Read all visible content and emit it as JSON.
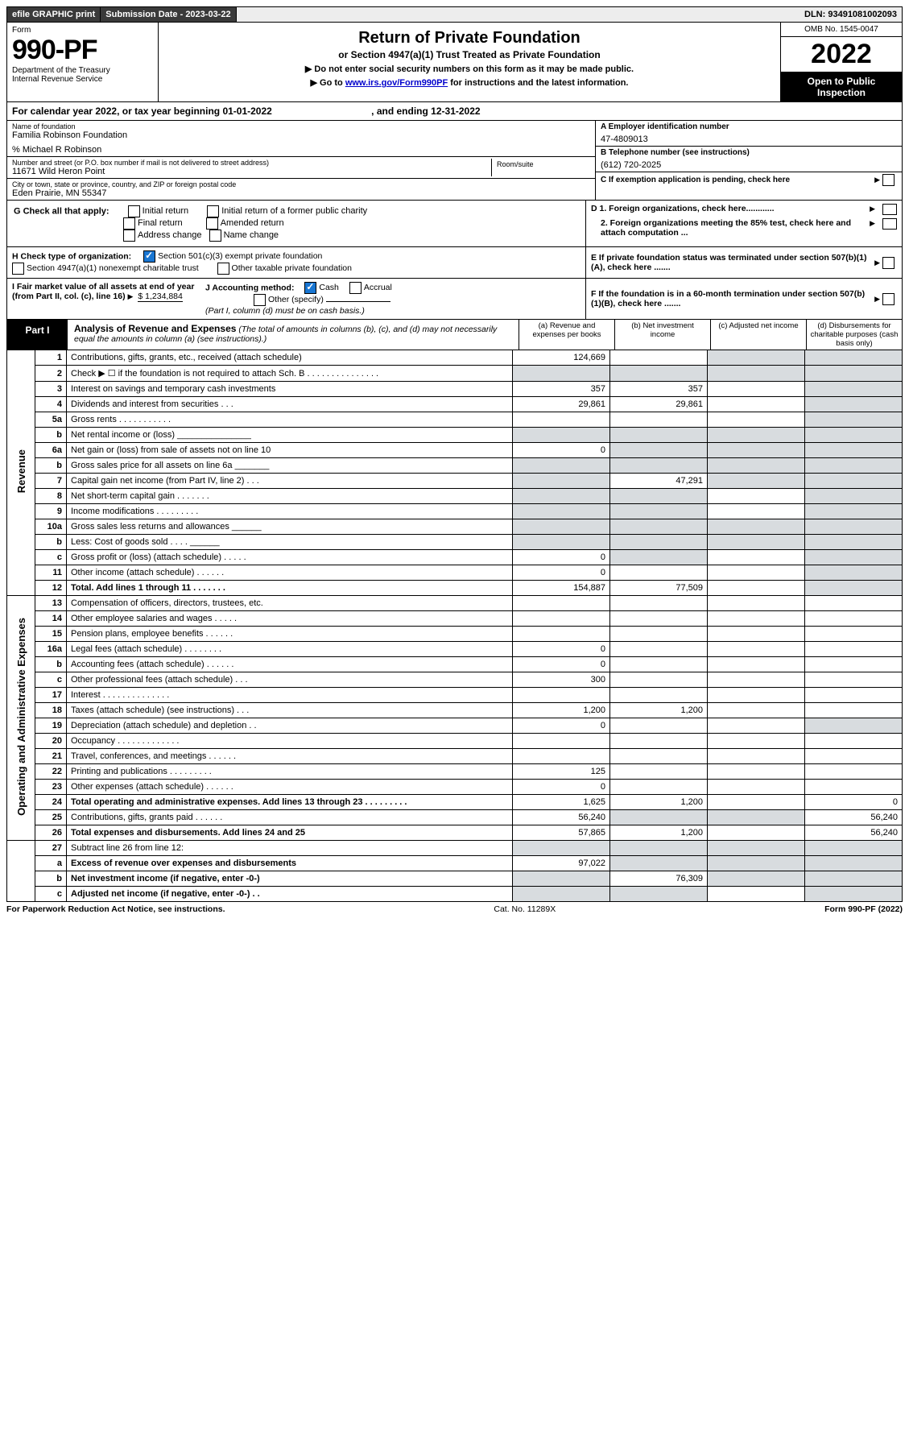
{
  "top_bar": {
    "efile": "efile GRAPHIC print",
    "submission_label": "Submission Date - 2023-03-22",
    "dln": "DLN: 93491081002093"
  },
  "header": {
    "form_word": "Form",
    "form_number": "990-PF",
    "dept": "Department of the Treasury",
    "irs": "Internal Revenue Service",
    "title": "Return of Private Foundation",
    "subtitle": "or Section 4947(a)(1) Trust Treated as Private Foundation",
    "instr1": "▶ Do not enter social security numbers on this form as it may be made public.",
    "instr2_pre": "▶ Go to ",
    "instr2_link": "www.irs.gov/Form990PF",
    "instr2_post": " for instructions and the latest information.",
    "omb": "OMB No. 1545-0047",
    "year": "2022",
    "open": "Open to Public Inspection"
  },
  "cal_year": {
    "text_a": "For calendar year 2022, or tax year beginning 01-01-2022",
    "text_b": ", and ending 12-31-2022"
  },
  "info": {
    "name_label": "Name of foundation",
    "name": "Familia Robinson Foundation",
    "care_of": "% Michael R Robinson",
    "addr_label": "Number and street (or P.O. box number if mail is not delivered to street address)",
    "addr": "11671 Wild Heron Point",
    "room_label": "Room/suite",
    "city_label": "City or town, state or province, country, and ZIP or foreign postal code",
    "city": "Eden Prairie, MN  55347",
    "a_label": "A Employer identification number",
    "a_val": "47-4809013",
    "b_label": "B Telephone number (see instructions)",
    "b_val": "(612) 720-2025",
    "c_label": "C If exemption application is pending, check here"
  },
  "g": {
    "label": "G Check all that apply:",
    "opts": [
      "Initial return",
      "Initial return of a former public charity",
      "Final return",
      "Amended return",
      "Address change",
      "Name change"
    ]
  },
  "d": {
    "d1": "D 1. Foreign organizations, check here............",
    "d2": "2. Foreign organizations meeting the 85% test, check here and attach computation ..."
  },
  "h": {
    "label": "H Check type of organization:",
    "opt1": "Section 501(c)(3) exempt private foundation",
    "opt2": "Section 4947(a)(1) nonexempt charitable trust",
    "opt3": "Other taxable private foundation"
  },
  "e": "E  If private foundation status was terminated under section 507(b)(1)(A), check here .......",
  "i": {
    "label": "I Fair market value of all assets at end of year (from Part II, col. (c), line 16)",
    "val": "$  1,234,884"
  },
  "j": {
    "label": "J Accounting method:",
    "cash": "Cash",
    "accrual": "Accrual",
    "other": "Other (specify)",
    "note": "(Part I, column (d) must be on cash basis.)"
  },
  "f": "F  If the foundation is in a 60-month termination under section 507(b)(1)(B), check here .......",
  "part1": {
    "label": "Part I",
    "title": "Analysis of Revenue and Expenses",
    "note": "(The total of amounts in columns (b), (c), and (d) may not necessarily equal the amounts in column (a) (see instructions).)",
    "col_a": "(a) Revenue and expenses per books",
    "col_b": "(b) Net investment income",
    "col_c": "(c) Adjusted net income",
    "col_d": "(d) Disbursements for charitable purposes (cash basis only)"
  },
  "revenue_label": "Revenue",
  "expenses_label": "Operating and Administrative Expenses",
  "rows": [
    {
      "n": "1",
      "d": "Contributions, gifts, grants, etc., received (attach schedule)",
      "a": "124,669",
      "b": "",
      "c": "g",
      "dg": "g"
    },
    {
      "n": "2",
      "d": "Check ▶ ☐ if the foundation is not required to attach Sch. B   .   .   .   .   .   .   .   .   .   .   .   .   .   .   .",
      "a": "g",
      "b": "g",
      "c": "g",
      "dg": "g"
    },
    {
      "n": "3",
      "d": "Interest on savings and temporary cash investments",
      "a": "357",
      "b": "357",
      "c": "",
      "dg": "g"
    },
    {
      "n": "4",
      "d": "Dividends and interest from securities    .    .    .",
      "a": "29,861",
      "b": "29,861",
      "c": "",
      "dg": "g"
    },
    {
      "n": "5a",
      "d": "Gross rents    .    .    .    .    .    .    .    .    .    .    .",
      "a": "",
      "b": "",
      "c": "",
      "dg": "g"
    },
    {
      "n": "b",
      "d": "Net rental income or (loss)  _______________",
      "a": "g",
      "b": "g",
      "c": "g",
      "dg": "g"
    },
    {
      "n": "6a",
      "d": "Net gain or (loss) from sale of assets not on line 10",
      "a": "0",
      "b": "g",
      "c": "g",
      "dg": "g"
    },
    {
      "n": "b",
      "d": "Gross sales price for all assets on line 6a _______",
      "a": "g",
      "b": "g",
      "c": "g",
      "dg": "g"
    },
    {
      "n": "7",
      "d": "Capital gain net income (from Part IV, line 2)   .   .   .",
      "a": "g",
      "b": "47,291",
      "c": "g",
      "dg": "g"
    },
    {
      "n": "8",
      "d": "Net short-term capital gain   .   .   .   .   .   .   .",
      "a": "g",
      "b": "g",
      "c": "",
      "dg": "g"
    },
    {
      "n": "9",
      "d": "Income modifications  .   .   .   .   .   .   .   .   .",
      "a": "g",
      "b": "g",
      "c": "",
      "dg": "g"
    },
    {
      "n": "10a",
      "d": "Gross sales less returns and allowances  ______",
      "a": "g",
      "b": "g",
      "c": "g",
      "dg": "g"
    },
    {
      "n": "b",
      "d": "Less: Cost of goods sold    .   .   .   .  ______",
      "a": "g",
      "b": "g",
      "c": "g",
      "dg": "g"
    },
    {
      "n": "c",
      "d": "Gross profit or (loss) (attach schedule)   .   .   .   .   .",
      "a": "0",
      "b": "g",
      "c": "",
      "dg": "g"
    },
    {
      "n": "11",
      "d": "Other income (attach schedule)    .   .   .   .   .   .",
      "a": "0",
      "b": "",
      "c": "",
      "dg": "g"
    },
    {
      "n": "12",
      "d": "Total. Add lines 1 through 11   .   .   .   .   .   .   .",
      "a": "154,887",
      "b": "77,509",
      "c": "",
      "dg": "g",
      "bold": true
    }
  ],
  "exp_rows": [
    {
      "n": "13",
      "d": "Compensation of officers, directors, trustees, etc.",
      "a": "",
      "b": "",
      "c": "",
      "dg": ""
    },
    {
      "n": "14",
      "d": "Other employee salaries and wages   .   .   .   .   .",
      "a": "",
      "b": "",
      "c": "",
      "dg": ""
    },
    {
      "n": "15",
      "d": "Pension plans, employee benefits   .   .   .   .   .   .",
      "a": "",
      "b": "",
      "c": "",
      "dg": ""
    },
    {
      "n": "16a",
      "d": "Legal fees (attach schedule)  .   .   .   .   .   .   .   .",
      "a": "0",
      "b": "",
      "c": "",
      "dg": ""
    },
    {
      "n": "b",
      "d": "Accounting fees (attach schedule)  .   .   .   .   .   .",
      "a": "0",
      "b": "",
      "c": "",
      "dg": ""
    },
    {
      "n": "c",
      "d": "Other professional fees (attach schedule)    .   .   .",
      "a": "300",
      "b": "",
      "c": "",
      "dg": ""
    },
    {
      "n": "17",
      "d": "Interest  .   .   .   .   .   .   .   .   .   .   .   .   .   .",
      "a": "",
      "b": "",
      "c": "",
      "dg": ""
    },
    {
      "n": "18",
      "d": "Taxes (attach schedule) (see instructions)    .   .   .",
      "a": "1,200",
      "b": "1,200",
      "c": "",
      "dg": ""
    },
    {
      "n": "19",
      "d": "Depreciation (attach schedule) and depletion    .   .",
      "a": "0",
      "b": "",
      "c": "",
      "dg": "g"
    },
    {
      "n": "20",
      "d": "Occupancy  .   .   .   .   .   .   .   .   .   .   .   .   .",
      "a": "",
      "b": "",
      "c": "",
      "dg": ""
    },
    {
      "n": "21",
      "d": "Travel, conferences, and meetings  .   .   .   .   .   .",
      "a": "",
      "b": "",
      "c": "",
      "dg": ""
    },
    {
      "n": "22",
      "d": "Printing and publications  .   .   .   .   .   .   .   .   .",
      "a": "125",
      "b": "",
      "c": "",
      "dg": ""
    },
    {
      "n": "23",
      "d": "Other expenses (attach schedule)  .   .   .   .   .   .",
      "a": "0",
      "b": "",
      "c": "",
      "dg": ""
    },
    {
      "n": "24",
      "d": "Total operating and administrative expenses. Add lines 13 through 23   .   .   .   .   .   .   .   .   .",
      "a": "1,625",
      "b": "1,200",
      "c": "",
      "dg": "0",
      "bold": true
    },
    {
      "n": "25",
      "d": "Contributions, gifts, grants paid    .   .   .   .   .   .",
      "a": "56,240",
      "b": "g",
      "c": "g",
      "dg": "56,240"
    },
    {
      "n": "26",
      "d": "Total expenses and disbursements. Add lines 24 and 25",
      "a": "57,865",
      "b": "1,200",
      "c": "",
      "dg": "56,240",
      "bold": true
    }
  ],
  "final_rows": [
    {
      "n": "27",
      "d": "Subtract line 26 from line 12:",
      "a": "g",
      "b": "g",
      "c": "g",
      "dg": "g"
    },
    {
      "n": "a",
      "d": "Excess of revenue over expenses and disbursements",
      "a": "97,022",
      "b": "g",
      "c": "g",
      "dg": "g",
      "bold": true
    },
    {
      "n": "b",
      "d": "Net investment income (if negative, enter -0-)",
      "a": "g",
      "b": "76,309",
      "c": "g",
      "dg": "g",
      "bold": true
    },
    {
      "n": "c",
      "d": "Adjusted net income (if negative, enter -0-)   .   .",
      "a": "g",
      "b": "g",
      "c": "",
      "dg": "g",
      "bold": true
    }
  ],
  "footer": {
    "left": "For Paperwork Reduction Act Notice, see instructions.",
    "mid": "Cat. No. 11289X",
    "right": "Form 990-PF (2022)"
  },
  "colors": {
    "grey_cell": "#d8dcdf",
    "dark_bar": "#3a3a3a",
    "link": "#0000cc",
    "check_blue": "#1976d2"
  }
}
